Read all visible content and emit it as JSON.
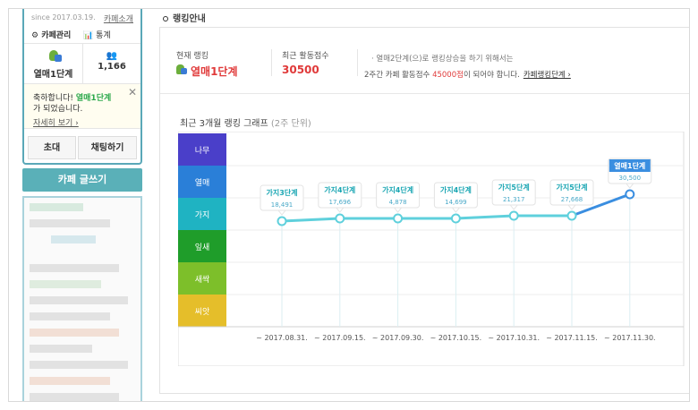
{
  "sidebar": {
    "since": "since 2017.03.19.",
    "cafe_intro": "카페소개",
    "manage": "⚙ 카페관리",
    "stats": "📊 통계",
    "rank_label": "열매1단계",
    "member_count": "1,166",
    "congrats_line1_prefix": "축하합니다! ",
    "congrats_rank": "열매1단계",
    "congrats_line2": "가 되었습니다.",
    "more_link": "자세히 보기 ›",
    "invite": "초대",
    "chat": "채팅하기",
    "write": "카페 글쓰기"
  },
  "main": {
    "section_title": "랭킹안내",
    "current_rank_label": "현재 랭킹",
    "current_rank_value": "열매1단계",
    "recent_score_label": "최근 활동점수",
    "recent_score_value": "30500",
    "msg_line1": "· 열매2단계(으)로 랭킹상승을 하기 위해서는",
    "msg_line2_prefix": "2주간 카페 활동점수 ",
    "msg_line2_score": "45000점",
    "msg_line2_suffix": "이 되어야 합니다.",
    "msg_link": "카페랭킹단계 ›",
    "graph_title": "최근 3개월 랭킹 그래프",
    "graph_sub": "(2주 단위)"
  },
  "chart_data": {
    "type": "line",
    "levels": [
      {
        "name": "나무",
        "color": "#4a3fc9"
      },
      {
        "name": "열매",
        "color": "#2a7fd8"
      },
      {
        "name": "가지",
        "color": "#1fb3c2"
      },
      {
        "name": "잎새",
        "color": "#1f9d2a"
      },
      {
        "name": "새싹",
        "color": "#7dbf2a"
      },
      {
        "name": "씨앗",
        "color": "#e5be2a"
      }
    ],
    "x": [
      "~ 2017.08.31.",
      "~ 2017.09.15.",
      "~ 2017.09.30.",
      "~ 2017.10.15.",
      "~ 2017.10.31.",
      "~ 2017.11.15.",
      "~ 2017.11.30."
    ],
    "points": [
      {
        "rank": "가지3단계",
        "score": "18,491",
        "level": "가지",
        "step": 3
      },
      {
        "rank": "가지4단계",
        "score": "17,696",
        "level": "가지",
        "step": 4
      },
      {
        "rank": "가지4단계",
        "score": "4,878",
        "level": "가지",
        "step": 4
      },
      {
        "rank": "가지4단계",
        "score": "14,699",
        "level": "가지",
        "step": 4
      },
      {
        "rank": "가지5단계",
        "score": "21,317",
        "level": "가지",
        "step": 5
      },
      {
        "rank": "가지5단계",
        "score": "27,668",
        "level": "가지",
        "step": 5
      },
      {
        "rank": "열매1단계",
        "score": "30,500",
        "level": "열매",
        "step": 1
      }
    ],
    "line_color": "#5fd0dc",
    "last_segment_color": "#3a8ee0"
  }
}
